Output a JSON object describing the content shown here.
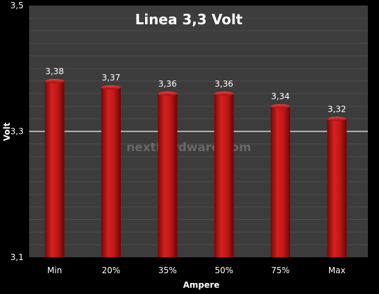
{
  "chart_data": {
    "type": "bar",
    "title": "Linea 3,3 Volt",
    "xlabel": "Ampere",
    "ylabel": "Volt",
    "categories": [
      "Min",
      "20%",
      "35%",
      "50%",
      "75%",
      "Max"
    ],
    "values": [
      3.38,
      3.37,
      3.36,
      3.36,
      3.34,
      3.32
    ],
    "value_labels": [
      "3,38",
      "3,37",
      "3,36",
      "3,36",
      "3,34",
      "3,32"
    ],
    "ylim": [
      3.1,
      3.5
    ],
    "y_ticks": [
      3.1,
      3.3,
      3.5
    ],
    "y_tick_labels": [
      "3,1",
      "3,3",
      "3,5"
    ],
    "grid": true,
    "bar_color": "#b01010",
    "plot_background": "#3c3c3c",
    "watermark": "nexthardware.com"
  }
}
